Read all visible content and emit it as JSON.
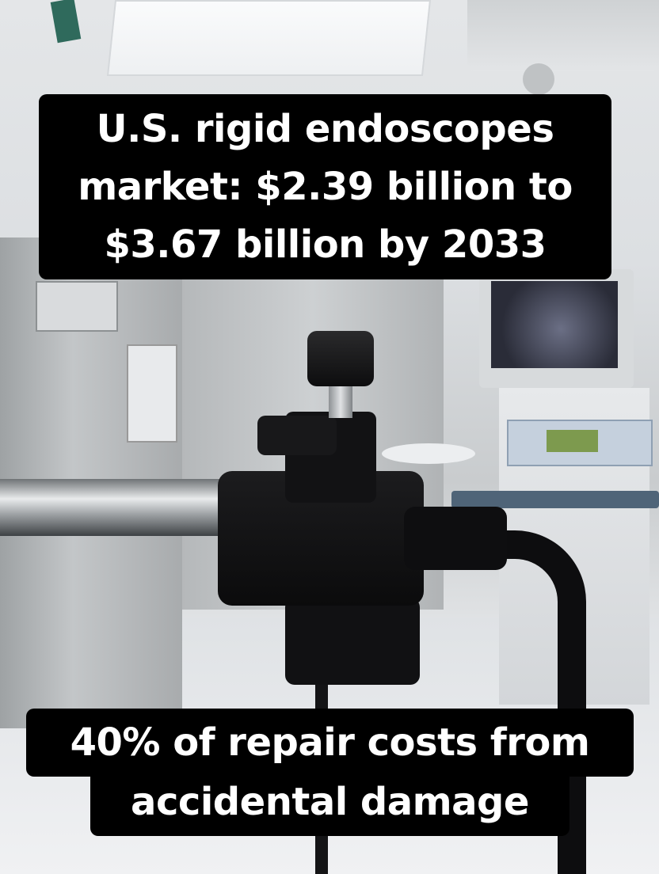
{
  "scene": {
    "description_icons": [
      "rigid-endoscope-camera",
      "operating-room"
    ]
  },
  "captions": {
    "top": {
      "lines": [
        "U.S. rigid endoscopes",
        "market: $2.39 billion to",
        "$3.67 billion by 2033"
      ]
    },
    "bottom": {
      "lines": [
        "40% of repair costs from",
        "accidental damage"
      ]
    }
  },
  "colors": {
    "caption_bg": "#000000",
    "caption_text": "#ffffff"
  }
}
